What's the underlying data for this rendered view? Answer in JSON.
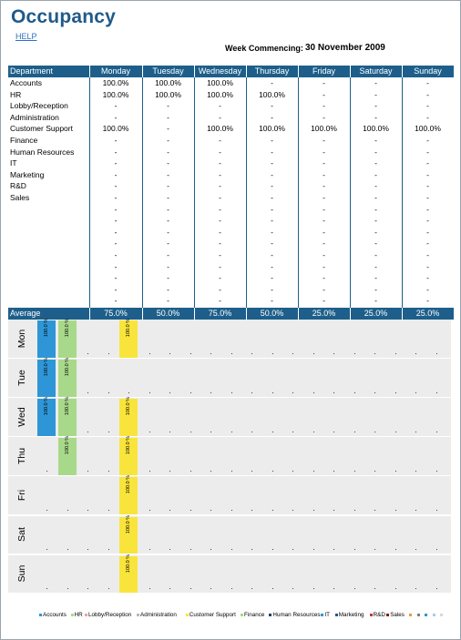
{
  "header": {
    "title": "Occupancy",
    "help": "HELP",
    "week_label": "Week Commencing:",
    "week_value": "30 November 2009"
  },
  "table": {
    "columns": [
      "Department",
      "Monday",
      "Tuesday",
      "Wednesday",
      "Thursday",
      "Friday",
      "Saturday",
      "Sunday"
    ],
    "rows": [
      {
        "dept": "Accounts",
        "values": [
          "100.0%",
          "100.0%",
          "100.0%",
          "-",
          "-",
          "-",
          "-"
        ]
      },
      {
        "dept": "HR",
        "values": [
          "100.0%",
          "100.0%",
          "100.0%",
          "100.0%",
          "-",
          "-",
          "-"
        ]
      },
      {
        "dept": "Lobby/Reception",
        "values": [
          "-",
          "-",
          "-",
          "-",
          "-",
          "-",
          "-"
        ]
      },
      {
        "dept": "Administration",
        "values": [
          "-",
          "-",
          "-",
          "-",
          "-",
          "-",
          "-"
        ]
      },
      {
        "dept": "Customer Support",
        "values": [
          "100.0%",
          "-",
          "100.0%",
          "100.0%",
          "100.0%",
          "100.0%",
          "100.0%"
        ]
      },
      {
        "dept": "Finance",
        "values": [
          "-",
          "-",
          "-",
          "-",
          "-",
          "-",
          "-"
        ]
      },
      {
        "dept": "Human Resources",
        "values": [
          "-",
          "-",
          "-",
          "-",
          "-",
          "-",
          "-"
        ]
      },
      {
        "dept": "IT",
        "values": [
          "-",
          "-",
          "-",
          "-",
          "-",
          "-",
          "-"
        ]
      },
      {
        "dept": "Marketing",
        "values": [
          "-",
          "-",
          "-",
          "-",
          "-",
          "-",
          "-"
        ]
      },
      {
        "dept": "R&D",
        "values": [
          "-",
          "-",
          "-",
          "-",
          "-",
          "-",
          "-"
        ]
      },
      {
        "dept": "Sales",
        "values": [
          "-",
          "-",
          "-",
          "-",
          "-",
          "-",
          "-"
        ]
      },
      {
        "dept": "",
        "values": [
          "-",
          "-",
          "-",
          "-",
          "-",
          "-",
          "-"
        ]
      },
      {
        "dept": "",
        "values": [
          "-",
          "-",
          "-",
          "-",
          "-",
          "-",
          "-"
        ]
      },
      {
        "dept": "",
        "values": [
          "-",
          "-",
          "-",
          "-",
          "-",
          "-",
          "-"
        ]
      },
      {
        "dept": "",
        "values": [
          "-",
          "-",
          "-",
          "-",
          "-",
          "-",
          "-"
        ]
      },
      {
        "dept": "",
        "values": [
          "-",
          "-",
          "-",
          "-",
          "-",
          "-",
          "-"
        ]
      },
      {
        "dept": "",
        "values": [
          "-",
          "-",
          "-",
          "-",
          "-",
          "-",
          "-"
        ]
      },
      {
        "dept": "",
        "values": [
          "-",
          "-",
          "-",
          "-",
          "-",
          "-",
          "-"
        ]
      },
      {
        "dept": "",
        "values": [
          "-",
          "-",
          "-",
          "-",
          "-",
          "-",
          "-"
        ]
      },
      {
        "dept": "",
        "values": [
          "-",
          "-",
          "-",
          "-",
          "-",
          "-",
          "-"
        ]
      }
    ],
    "average": {
      "label": "Average",
      "values": [
        "75.0%",
        "50.0%",
        "75.0%",
        "50.0%",
        "25.0%",
        "25.0%",
        "25.0%"
      ]
    }
  },
  "chart_data": {
    "type": "bar",
    "panels": [
      "Mon",
      "Tue",
      "Wed",
      "Thu",
      "Fri",
      "Sat",
      "Sun"
    ],
    "categories": [
      "Accounts",
      "HR",
      "Lobby/Reception",
      "Administration",
      "Customer Support",
      "Finance",
      "Human Resources",
      "IT",
      "Marketing",
      "R&D",
      "Sales",
      "",
      "",
      "",
      "",
      "",
      "",
      "",
      "",
      ""
    ],
    "series_colors": [
      "#2e96d6",
      "#a8d98a",
      "#f0a0a0",
      "#b9b9b9",
      "#f9e43b",
      "#a8d98a",
      "#1f3f70",
      "#2e96d6",
      "#1f5a8a",
      "#c0392b",
      "#7a1f1f",
      "#e79b3f",
      "#7f7f7f",
      "#2e96d6",
      "#a9cbe5",
      "#d9d9d9"
    ],
    "values": [
      [
        100,
        100,
        0,
        0,
        100,
        0,
        0,
        0,
        0,
        0,
        0,
        0,
        0,
        0,
        0,
        0,
        0,
        0,
        0,
        0
      ],
      [
        100,
        100,
        0,
        0,
        0,
        0,
        0,
        0,
        0,
        0,
        0,
        0,
        0,
        0,
        0,
        0,
        0,
        0,
        0,
        0
      ],
      [
        100,
        100,
        0,
        0,
        100,
        0,
        0,
        0,
        0,
        0,
        0,
        0,
        0,
        0,
        0,
        0,
        0,
        0,
        0,
        0
      ],
      [
        0,
        100,
        0,
        0,
        100,
        0,
        0,
        0,
        0,
        0,
        0,
        0,
        0,
        0,
        0,
        0,
        0,
        0,
        0,
        0
      ],
      [
        0,
        0,
        0,
        0,
        100,
        0,
        0,
        0,
        0,
        0,
        0,
        0,
        0,
        0,
        0,
        0,
        0,
        0,
        0,
        0
      ],
      [
        0,
        0,
        0,
        0,
        100,
        0,
        0,
        0,
        0,
        0,
        0,
        0,
        0,
        0,
        0,
        0,
        0,
        0,
        0,
        0
      ],
      [
        0,
        0,
        0,
        0,
        100,
        0,
        0,
        0,
        0,
        0,
        0,
        0,
        0,
        0,
        0,
        0,
        0,
        0,
        0,
        0
      ]
    ],
    "bar_label": "100.0 %",
    "legend": [
      "Accounts",
      "HR",
      "Lobby/Reception",
      "Administration",
      "Customer Support",
      "Finance",
      "Human Resources",
      "IT",
      "Marketing",
      "R&D",
      "Sales",
      "",
      "",
      "",
      "",
      ""
    ],
    "ylim": [
      0,
      100
    ]
  }
}
